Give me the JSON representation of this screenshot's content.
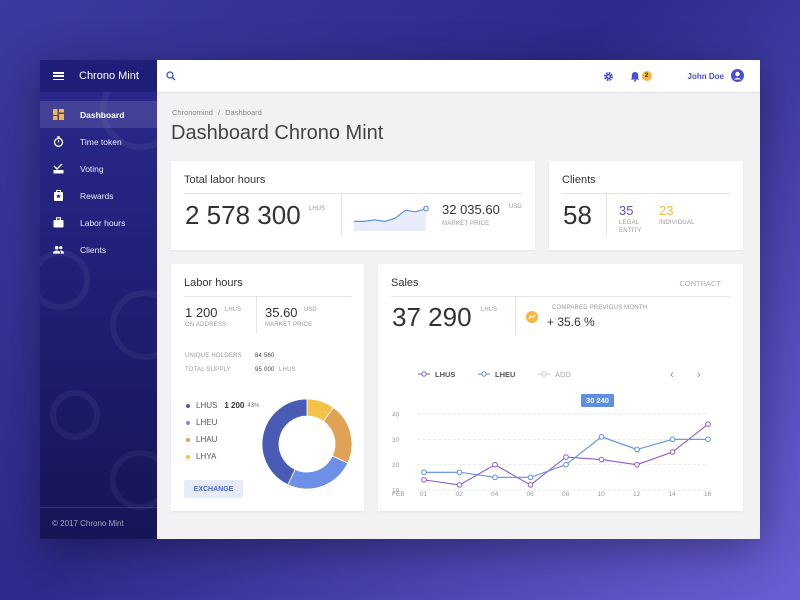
{
  "sidebar": {
    "app_title": "Chrono Mint",
    "items": [
      {
        "label": "Dashboard",
        "icon": "dashboard-icon",
        "active": true
      },
      {
        "label": "Time token",
        "icon": "stopwatch-icon"
      },
      {
        "label": "Voting",
        "icon": "voting-icon"
      },
      {
        "label": "Rewards",
        "icon": "rewards-icon"
      },
      {
        "label": "Labor hours",
        "icon": "briefcase-icon"
      },
      {
        "label": "Clients",
        "icon": "people-icon"
      }
    ],
    "footer": "© 2017 Chrono Mint"
  },
  "topbar": {
    "notification_count": "2",
    "user_name": "John Doe"
  },
  "breadcrumb": {
    "root": "Chronomind",
    "separator": "/",
    "current": "Dashboard"
  },
  "page_title": "Dashboard Chrono Mint",
  "total_labor": {
    "title": "Total labor hours",
    "value": "2 578 300",
    "unit": "LHUS",
    "market_value": "32 035.60",
    "market_unit": "USD",
    "market_label": "MARKET PRICE",
    "spark": [
      3,
      3,
      3.5,
      3,
      4,
      6.5,
      6,
      7
    ]
  },
  "clients": {
    "title": "Clients",
    "total": "58",
    "legal": {
      "value": "35",
      "label1": "LEGAL",
      "label2": "ENTITY"
    },
    "individual": {
      "value": "23",
      "label": "INDIVIDUAL"
    }
  },
  "labor_hours": {
    "title": "Labor hours",
    "on_address": {
      "value": "1 200",
      "unit": "LHUS",
      "label": "ON ADDRESS"
    },
    "market": {
      "value": "35.60",
      "unit": "USD",
      "label": "MARKET PRICE"
    },
    "unique_holders_label": "UNIQUE HOLDERS",
    "unique_holders_value": "84 560",
    "total_supply_label": "TOTAL SUPPLY",
    "total_supply_value": "95 000",
    "total_supply_unit": "LHUS",
    "legend": [
      {
        "name": "LHUS",
        "value": "1 200",
        "pct": "43%",
        "color": "#4a5bb5"
      },
      {
        "name": "LHEU",
        "color": "#6e8fe6"
      },
      {
        "name": "LHAU",
        "color": "#e0a255"
      },
      {
        "name": "LHYA",
        "color": "#f5c24a"
      }
    ],
    "exchange_label": "EXCHANGE"
  },
  "donut_data": {
    "type": "pie",
    "slices": [
      {
        "name": "LHUS",
        "value": 43,
        "color": "#4a5bb5"
      },
      {
        "name": "LHEU",
        "value": 25,
        "color": "#6e8fe6"
      },
      {
        "name": "LHAU",
        "value": 22,
        "color": "#e0a255"
      },
      {
        "name": "LHYA",
        "value": 10,
        "color": "#f5c24a"
      }
    ]
  },
  "sales": {
    "title": "Sales",
    "contract_label": "CONTRACT",
    "value": "37 290",
    "unit": "LHUS",
    "compare_label": "COMPARED PREVIOUS MONTH",
    "compare_value": "+ 35.6 %",
    "legend": [
      {
        "name": "LHUS",
        "color": "#8b5ccf"
      },
      {
        "name": "LHEU",
        "color": "#5e8fe0"
      },
      {
        "name": "ADD",
        "color": "#c8c8d0"
      }
    ],
    "tooltip": "30 240"
  },
  "chart_data": {
    "type": "line",
    "x_label_first": "FEB",
    "categories": [
      "01",
      "02",
      "04",
      "06",
      "08",
      "10",
      "12",
      "14",
      "16"
    ],
    "ylim": [
      10,
      40
    ],
    "yticks": [
      10,
      20,
      30,
      40
    ],
    "series": [
      {
        "name": "LHUS",
        "color": "#8b5ccf",
        "values": [
          14,
          12,
          20,
          12,
          23,
          22,
          20,
          25,
          36
        ]
      },
      {
        "name": "LHEU",
        "color": "#5e8fe0",
        "values": [
          17,
          17,
          15,
          15,
          20,
          31,
          26,
          30,
          30
        ]
      }
    ]
  }
}
